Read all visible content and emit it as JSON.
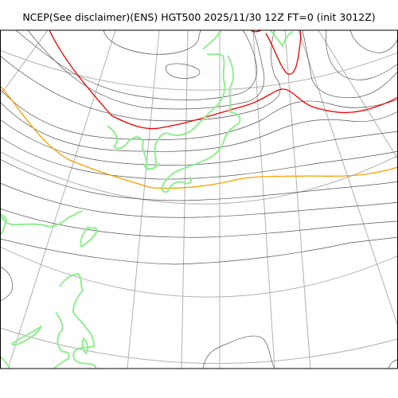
{
  "title": "NCEP(See disclaimer)(ENS) HGT500 2025/11/30 12Z FT=0 (init 3012Z)",
  "map": {
    "colors": {
      "contour": "#555555",
      "highlight_red": "#ee0000",
      "highlight_orange": "#f5a000",
      "coastline": "#90ee90",
      "graticule": "#b0b0b0",
      "frame": "#000000"
    }
  }
}
